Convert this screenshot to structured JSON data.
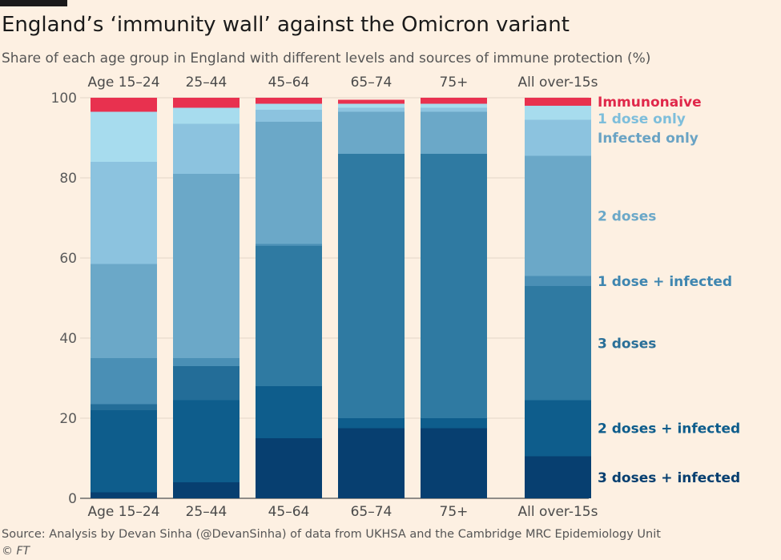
{
  "title": "England’s ‘immunity wall’ against the Omicron variant",
  "subtitle": "Share of each age group in England with different levels and sources of immune protection (%)",
  "source": "Source: Analysis by Devan Sinha (@DevanSinha) of data from UKHSA and the Cambridge MRC Epidemiology Unit",
  "credit": "© FT",
  "chart_data": {
    "type": "bar",
    "stacked": true,
    "categories": [
      "Age 15–24",
      "25–44",
      "45–64",
      "65–74",
      "75+",
      "All over-15s"
    ],
    "ylim": [
      0,
      100
    ],
    "yticks": [
      0,
      20,
      40,
      60,
      80,
      100
    ],
    "grid": true,
    "legend": "right, inline labels",
    "series": [
      {
        "name": "3 doses + infected",
        "color": "#073f70",
        "values": [
          1.5,
          4,
          15,
          17.5,
          17.5,
          10.5
        ]
      },
      {
        "name": "2 doses + infected",
        "color": "#0e5d8c",
        "values": [
          20.5,
          20.5,
          13,
          2.5,
          2.5,
          14
        ]
      },
      {
        "name": "",
        "color": "#236d98",
        "values": [
          1.5,
          8.5,
          0,
          0,
          0,
          0
        ]
      },
      {
        "name": "3 doses",
        "color": "#2f7aa2",
        "values": [
          0,
          0,
          35,
          66,
          66,
          28.5
        ]
      },
      {
        "name": "1 dose + infected",
        "color": "#4a8fb5",
        "values": [
          11.5,
          2,
          0.5,
          0,
          0,
          2.5
        ]
      },
      {
        "name": "2 doses",
        "color": "#6ba8c8",
        "values": [
          23.5,
          46,
          30.5,
          10.5,
          10.5,
          30
        ]
      },
      {
        "name": "Infected only",
        "color": "#8cc3df",
        "values": [
          25.5,
          12.5,
          3,
          1,
          1,
          9
        ]
      },
      {
        "name": "1 dose only",
        "color": "#a7dcee",
        "values": [
          12.5,
          4,
          1.5,
          1,
          1,
          3.5
        ]
      },
      {
        "name": "Immunonaive",
        "color": "#e8314f",
        "values": [
          3.5,
          2.5,
          1.5,
          1,
          1.5,
          2
        ]
      }
    ]
  }
}
